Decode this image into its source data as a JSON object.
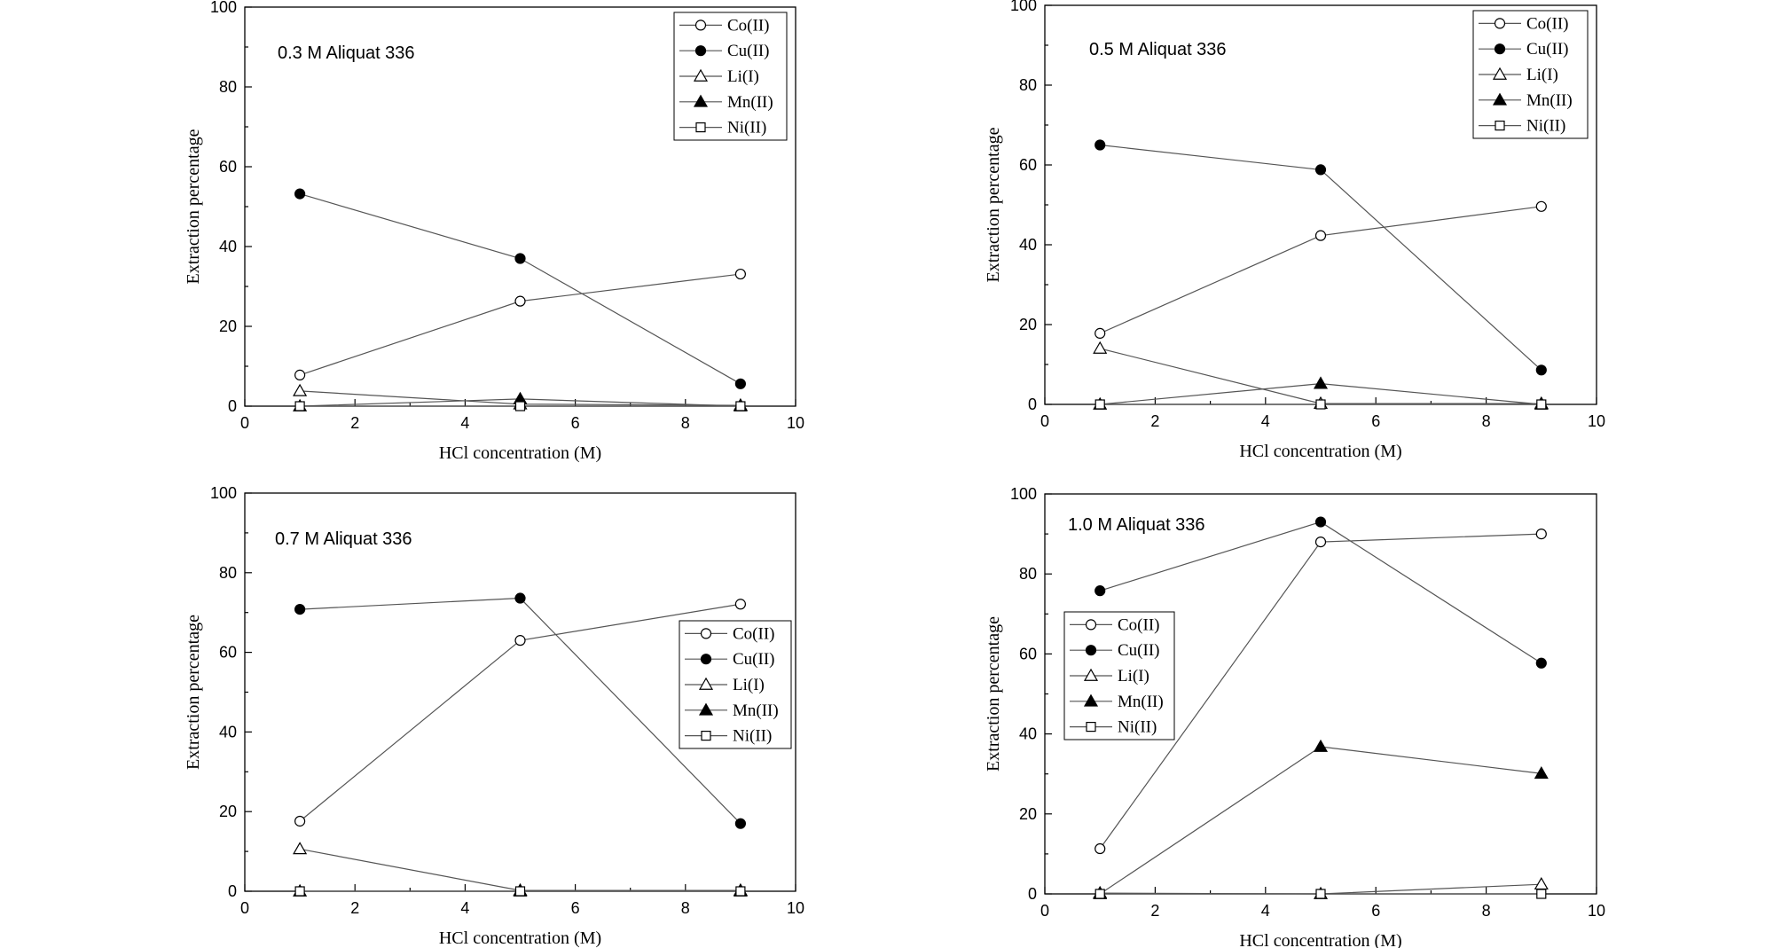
{
  "chart_data": [
    {
      "type": "line",
      "annotation": "0.3 M Aliquat 336",
      "xlabel": "HCl concentration (M)",
      "ylabel": "Extraction percentage",
      "xlim": [
        0,
        10
      ],
      "ylim": [
        0,
        100
      ],
      "xticks": [
        "0",
        "2",
        "4",
        "6",
        "8",
        "10"
      ],
      "yticks": [
        "0",
        "20",
        "40",
        "60",
        "80",
        "100"
      ],
      "legend_position": "top-right",
      "x": [
        1,
        5,
        9
      ],
      "series": [
        {
          "name": "Co(II)",
          "marker": "circle-open",
          "values": [
            7.8,
            26.3,
            33.1
          ]
        },
        {
          "name": "Cu(II)",
          "marker": "circle-filled",
          "values": [
            53.2,
            37.0,
            5.6
          ]
        },
        {
          "name": "Li(I)",
          "marker": "triangle-open",
          "values": [
            3.8,
            0.5,
            0.2
          ]
        },
        {
          "name": "Mn(II)",
          "marker": "triangle-filled",
          "values": [
            0.0,
            1.8,
            0.0
          ]
        },
        {
          "name": "Ni(II)",
          "marker": "square-open",
          "values": [
            0.0,
            0.0,
            0.0
          ]
        }
      ]
    },
    {
      "type": "line",
      "annotation": "0.5 M Aliquat 336",
      "xlabel": "HCl concentration (M)",
      "ylabel": "Extraction percentage",
      "xlim": [
        0,
        10
      ],
      "ylim": [
        0,
        100
      ],
      "xticks": [
        "0",
        "2",
        "4",
        "6",
        "8",
        "10"
      ],
      "yticks": [
        "0",
        "20",
        "40",
        "60",
        "80",
        "100"
      ],
      "legend_position": "top-right",
      "x": [
        1,
        5,
        9
      ],
      "series": [
        {
          "name": "Co(II)",
          "marker": "circle-open",
          "values": [
            17.8,
            42.3,
            49.6
          ]
        },
        {
          "name": "Cu(II)",
          "marker": "circle-filled",
          "values": [
            65.0,
            58.8,
            8.6
          ]
        },
        {
          "name": "Li(I)",
          "marker": "triangle-open",
          "values": [
            14.0,
            0.2,
            0.2
          ]
        },
        {
          "name": "Mn(II)",
          "marker": "triangle-filled",
          "values": [
            0.0,
            5.2,
            0.0
          ]
        },
        {
          "name": "Ni(II)",
          "marker": "square-open",
          "values": [
            0.0,
            0.0,
            0.0
          ]
        }
      ]
    },
    {
      "type": "line",
      "annotation": "0.7 M Aliquat 336",
      "xlabel": "HCl concentration (M)",
      "ylabel": "Extraction percentage",
      "xlim": [
        0,
        10
      ],
      "ylim": [
        0,
        100
      ],
      "xticks": [
        "0",
        "2",
        "4",
        "6",
        "8",
        "10"
      ],
      "yticks": [
        "0",
        "20",
        "40",
        "60",
        "80",
        "100"
      ],
      "legend_position": "center-right",
      "x": [
        1,
        5,
        9
      ],
      "series": [
        {
          "name": "Co(II)",
          "marker": "circle-open",
          "values": [
            17.6,
            63.0,
            72.1
          ]
        },
        {
          "name": "Cu(II)",
          "marker": "circle-filled",
          "values": [
            70.8,
            73.6,
            17.0
          ]
        },
        {
          "name": "Li(I)",
          "marker": "triangle-open",
          "values": [
            10.6,
            0.2,
            0.2
          ]
        },
        {
          "name": "Mn(II)",
          "marker": "triangle-filled",
          "values": [
            0.0,
            0.0,
            0.0
          ]
        },
        {
          "name": "Ni(II)",
          "marker": "square-open",
          "values": [
            0.0,
            0.0,
            0.0
          ]
        }
      ]
    },
    {
      "type": "line",
      "annotation": "1.0 M Aliquat 336",
      "xlabel": "HCl concentration (M)",
      "ylabel": "Extraction percentage",
      "xlim": [
        0,
        10
      ],
      "ylim": [
        0,
        100
      ],
      "xticks": [
        "0",
        "2",
        "4",
        "6",
        "8",
        "10"
      ],
      "yticks": [
        "0",
        "20",
        "40",
        "60",
        "80",
        "100"
      ],
      "legend_position": "center-left",
      "x": [
        1,
        5,
        9
      ],
      "series": [
        {
          "name": "Co(II)",
          "marker": "circle-open",
          "values": [
            11.3,
            88.0,
            90.0
          ]
        },
        {
          "name": "Cu(II)",
          "marker": "circle-filled",
          "values": [
            75.8,
            93.0,
            57.7
          ]
        },
        {
          "name": "Li(I)",
          "marker": "triangle-open",
          "values": [
            0.2,
            0.0,
            2.4
          ]
        },
        {
          "name": "Mn(II)",
          "marker": "triangle-filled",
          "values": [
            0.0,
            36.8,
            30.1
          ]
        },
        {
          "name": "Ni(II)",
          "marker": "square-open",
          "values": [
            0.0,
            0.0,
            0.0
          ]
        }
      ]
    }
  ]
}
